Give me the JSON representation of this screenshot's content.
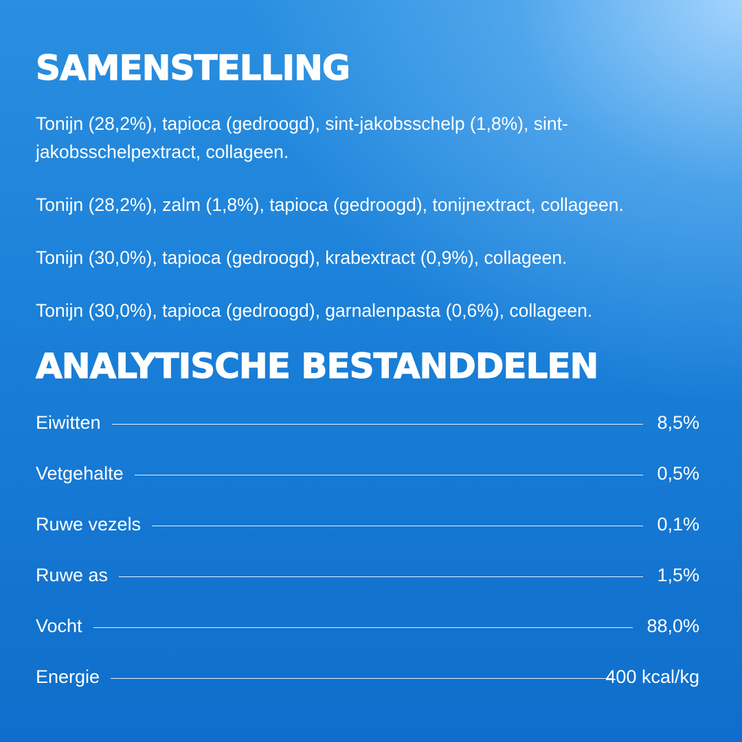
{
  "composition": {
    "heading": "SAMENSTELLING",
    "lines": [
      "Tonijn (28,2%), tapioca (gedroogd), sint-jakobsschelp (1,8%), sint-jakobsschelpextract, collageen.",
      "Tonijn (28,2%), zalm (1,8%), tapioca (gedroogd), tonijnextract, collageen.",
      "Tonijn (30,0%), tapioca (gedroogd), krabextract (0,9%), collageen.",
      "Tonijn (30,0%), tapioca (gedroogd), garnalenpasta (0,6%), collageen."
    ]
  },
  "analysis": {
    "heading": "ANALYTISCHE BESTANDDELEN",
    "rows": [
      {
        "label": "Eiwitten",
        "value": "8,5%"
      },
      {
        "label": "Vetgehalte",
        "value": "0,5%"
      },
      {
        "label": "Ruwe vezels",
        "value": "0,1%"
      },
      {
        "label": "Ruwe as",
        "value": "1,5%"
      },
      {
        "label": "Vocht",
        "value": "88,0%"
      },
      {
        "label": "Energie",
        "value": "400 kcal/kg"
      }
    ]
  },
  "colors": {
    "background_top": "#2a8fe0",
    "background_bottom": "#0f6ecb",
    "highlight": "#aad7ff",
    "text": "#ffffff"
  }
}
